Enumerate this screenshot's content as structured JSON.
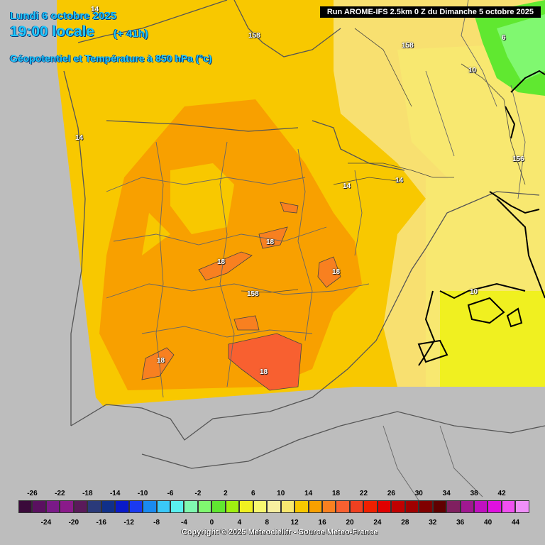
{
  "header": {
    "date": "Lundi 6 octobre 2025",
    "time": "19:00 locale",
    "offset": "(+ 41h)",
    "parameter": "Géopotentiel et Température à 850 hPa (°c)",
    "run": "Run AROME-IFS 2.5km 0 Z du Dimanche 5 octobre 2025"
  },
  "map_labels": {
    "t14_north": "14",
    "z158_a": "158",
    "z158_b": "158",
    "t6": "6",
    "t10_ne": "10",
    "t14_west": "14",
    "z156": "156",
    "t14_ebro_a": "14",
    "t14_ebro_b": "14",
    "t18_a": "18",
    "t18_b": "18",
    "t18_c": "18",
    "z158_c": "158",
    "t10_med": "10",
    "t18_d": "18",
    "t18_e": "18"
  },
  "legend": {
    "top_labels": [
      "-26",
      "-22",
      "-18",
      "-14",
      "-10",
      "-6",
      "-2",
      "2",
      "6",
      "10",
      "14",
      "18",
      "22",
      "26",
      "30",
      "34",
      "38",
      "42"
    ],
    "bottom_labels": [
      "-24",
      "-20",
      "-16",
      "-12",
      "-8",
      "-4",
      "0",
      "4",
      "8",
      "12",
      "16",
      "20",
      "24",
      "28",
      "32",
      "36",
      "40",
      "44"
    ],
    "colors": [
      "#3a0a3a",
      "#5a1060",
      "#7a1a88",
      "#8a1a8a",
      "#5a1a5a",
      "#2a3a7a",
      "#10308a",
      "#0a1ac8",
      "#1a3af0",
      "#1a8af0",
      "#3ac8f8",
      "#5af0f0",
      "#80f8b0",
      "#80f870",
      "#60e830",
      "#a0f010",
      "#f0f020",
      "#f8f870",
      "#f8f0a0",
      "#f8e870",
      "#f8c800",
      "#f8a000",
      "#f88020",
      "#f86030",
      "#f04020",
      "#f02000",
      "#e00000",
      "#c00000",
      "#a00000",
      "#800000",
      "#600000",
      "#802060",
      "#a01890",
      "#c010c0",
      "#e010e0",
      "#f050f0",
      "#f090f8"
    ]
  },
  "copyright": "Copyright © 2025 Meteociel.fr - Source Meteo-France"
}
